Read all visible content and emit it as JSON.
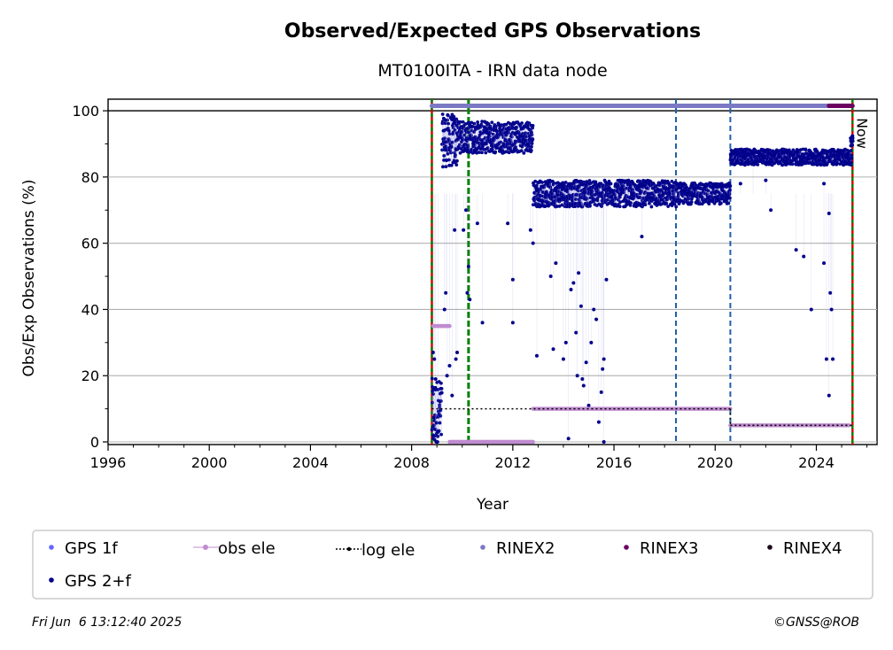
{
  "chart_data": {
    "type": "scatter",
    "title": "Observed/Expected GPS Observations",
    "subtitle": "MT0100ITA - IRN data node",
    "xlabel": "Year",
    "ylabel": "Obs/Exp Observations (%)",
    "xlim": [
      1996,
      2026.4
    ],
    "ylim": [
      -0.8,
      103.5
    ],
    "x_ticks": [
      1996,
      2000,
      2004,
      2008,
      2012,
      2016,
      2020,
      2024
    ],
    "x_tick_labels": [
      "1996",
      "2000",
      "2004",
      "2008",
      "2012",
      "2016",
      "2020",
      "2024"
    ],
    "y_ticks": [
      0,
      20,
      40,
      60,
      80,
      100
    ],
    "y_tick_labels": [
      "0",
      "20",
      "40",
      "60",
      "80",
      "100"
    ],
    "grid": "horizontal",
    "now_label": "Now",
    "now_year": 2025.43,
    "reference_lines": [
      {
        "kind": "red-green",
        "x": 2008.8
      },
      {
        "kind": "green",
        "x": 2010.25
      },
      {
        "kind": "blue",
        "x": 2018.45
      },
      {
        "kind": "blue",
        "x": 2020.6
      },
      {
        "kind": "red-green",
        "x": 2025.43
      }
    ],
    "colors": {
      "gps_1f": "#6666ff",
      "gps_2f": "#00008b",
      "obs_ele": "#c08cd0",
      "log_ele": "#000000",
      "rinex2": "#7b78c4",
      "rinex3": "#6b0060",
      "rinex4": "#1a0a1a",
      "blue_line": "#1f5fa8",
      "green_line": "#008000",
      "red_line": "#cc0000",
      "grid": "#b0b0b0"
    },
    "legend": {
      "placement": "bottom",
      "entries": [
        {
          "label": "GPS 1f",
          "marker": "dot",
          "color": "#6666ff"
        },
        {
          "label": "obs ele",
          "marker": "line-dot",
          "color": "#c08cd0"
        },
        {
          "label": "log ele",
          "marker": "dotted-line",
          "color": "#000000"
        },
        {
          "label": "RINEX2",
          "marker": "dot",
          "color": "#7b78c4"
        },
        {
          "label": "RINEX3",
          "marker": "dot",
          "color": "#6b0060"
        },
        {
          "label": "RINEX4",
          "marker": "dot",
          "color": "#1a0a1a"
        },
        {
          "label": "GPS 2+f",
          "marker": "dot",
          "color": "#00008b"
        }
      ]
    },
    "series": [
      {
        "name": "GPS 2+f",
        "segments": [
          {
            "x_range": [
              2008.8,
              2009.2
            ],
            "level": 8,
            "spread": 14
          },
          {
            "x_range": [
              2009.2,
              2009.8
            ],
            "level": 91,
            "spread": 10
          },
          {
            "x_range": [
              2009.8,
              2010.3
            ],
            "level": 92,
            "spread": 6
          },
          {
            "x_range": [
              2010.3,
              2012.8
            ],
            "level": 92,
            "spread": 6
          },
          {
            "x_range": [
              2012.8,
              2018.5
            ],
            "level": 75,
            "spread": 5
          },
          {
            "x_range": [
              2018.5,
              2020.6
            ],
            "level": 75,
            "spread": 4
          },
          {
            "x_range": [
              2020.6,
              2025.4
            ],
            "level": 86,
            "spread": 3
          },
          {
            "x_range": [
              2025.35,
              2025.45
            ],
            "level": 91,
            "spread": 2
          }
        ],
        "outliers": [
          [
            2008.85,
            27
          ],
          [
            2008.9,
            25
          ],
          [
            2008.95,
            19
          ],
          [
            2009.05,
            3
          ],
          [
            2009.3,
            40
          ],
          [
            2009.35,
            45
          ],
          [
            2009.4,
            20
          ],
          [
            2009.5,
            23
          ],
          [
            2009.6,
            14
          ],
          [
            2009.7,
            64
          ],
          [
            2009.75,
            25
          ],
          [
            2009.8,
            27
          ],
          [
            2010.05,
            64
          ],
          [
            2010.15,
            70
          ],
          [
            2010.2,
            45
          ],
          [
            2010.25,
            53
          ],
          [
            2010.3,
            43
          ],
          [
            2010.6,
            66
          ],
          [
            2010.8,
            36
          ],
          [
            2011.8,
            66
          ],
          [
            2012.0,
            49
          ],
          [
            2012.0,
            36
          ],
          [
            2012.7,
            64
          ],
          [
            2012.8,
            60
          ],
          [
            2012.95,
            26
          ],
          [
            2013.5,
            50
          ],
          [
            2013.6,
            28
          ],
          [
            2013.7,
            54
          ],
          [
            2014.0,
            25
          ],
          [
            2014.1,
            30
          ],
          [
            2014.3,
            46
          ],
          [
            2014.4,
            48
          ],
          [
            2014.5,
            33
          ],
          [
            2014.55,
            20
          ],
          [
            2014.6,
            51
          ],
          [
            2014.7,
            41
          ],
          [
            2014.75,
            19
          ],
          [
            2014.8,
            17
          ],
          [
            2014.9,
            24
          ],
          [
            2015.0,
            11
          ],
          [
            2015.1,
            30
          ],
          [
            2015.2,
            40
          ],
          [
            2015.3,
            37
          ],
          [
            2015.4,
            6
          ],
          [
            2015.5,
            15
          ],
          [
            2015.55,
            22
          ],
          [
            2015.6,
            25
          ],
          [
            2015.7,
            49
          ],
          [
            2014.2,
            1
          ],
          [
            2015.6,
            0
          ],
          [
            2017.1,
            62
          ],
          [
            2021.0,
            78
          ],
          [
            2021.5,
            84
          ],
          [
            2022.0,
            79
          ],
          [
            2022.2,
            70
          ],
          [
            2023.2,
            58
          ],
          [
            2023.5,
            56
          ],
          [
            2023.8,
            40
          ],
          [
            2024.3,
            54
          ],
          [
            2024.4,
            25
          ],
          [
            2024.5,
            14
          ],
          [
            2024.55,
            45
          ],
          [
            2024.6,
            40
          ],
          [
            2024.65,
            25
          ],
          [
            2024.5,
            69
          ],
          [
            2024.3,
            78
          ]
        ]
      },
      {
        "name": "obs ele",
        "segments": [
          {
            "x_range": [
              2008.85,
              2009.5
            ],
            "level": 35
          },
          {
            "x_range": [
              2009.5,
              2012.8
            ],
            "level": 0
          },
          {
            "x_range": [
              2012.8,
              2020.6
            ],
            "level": 10
          },
          {
            "x_range": [
              2020.6,
              2025.3
            ],
            "level": 5
          }
        ]
      },
      {
        "name": "log ele",
        "segments": [
          {
            "x_range": [
              2008.8,
              2020.6
            ],
            "level": 10
          },
          {
            "x_range": [
              2020.6,
              2025.43
            ],
            "level": 5
          }
        ]
      },
      {
        "name": "RINEX2",
        "segments": [
          {
            "x_range": [
              2008.8,
              2024.5
            ],
            "level": 101.5
          }
        ]
      },
      {
        "name": "RINEX3",
        "segments": [
          {
            "x_range": [
              2024.5,
              2025.43
            ],
            "level": 101.5
          }
        ]
      }
    ]
  },
  "footer": {
    "timestamp": "Fri Jun  6 13:12:40 2025",
    "copyright": "©GNSS@ROB"
  }
}
